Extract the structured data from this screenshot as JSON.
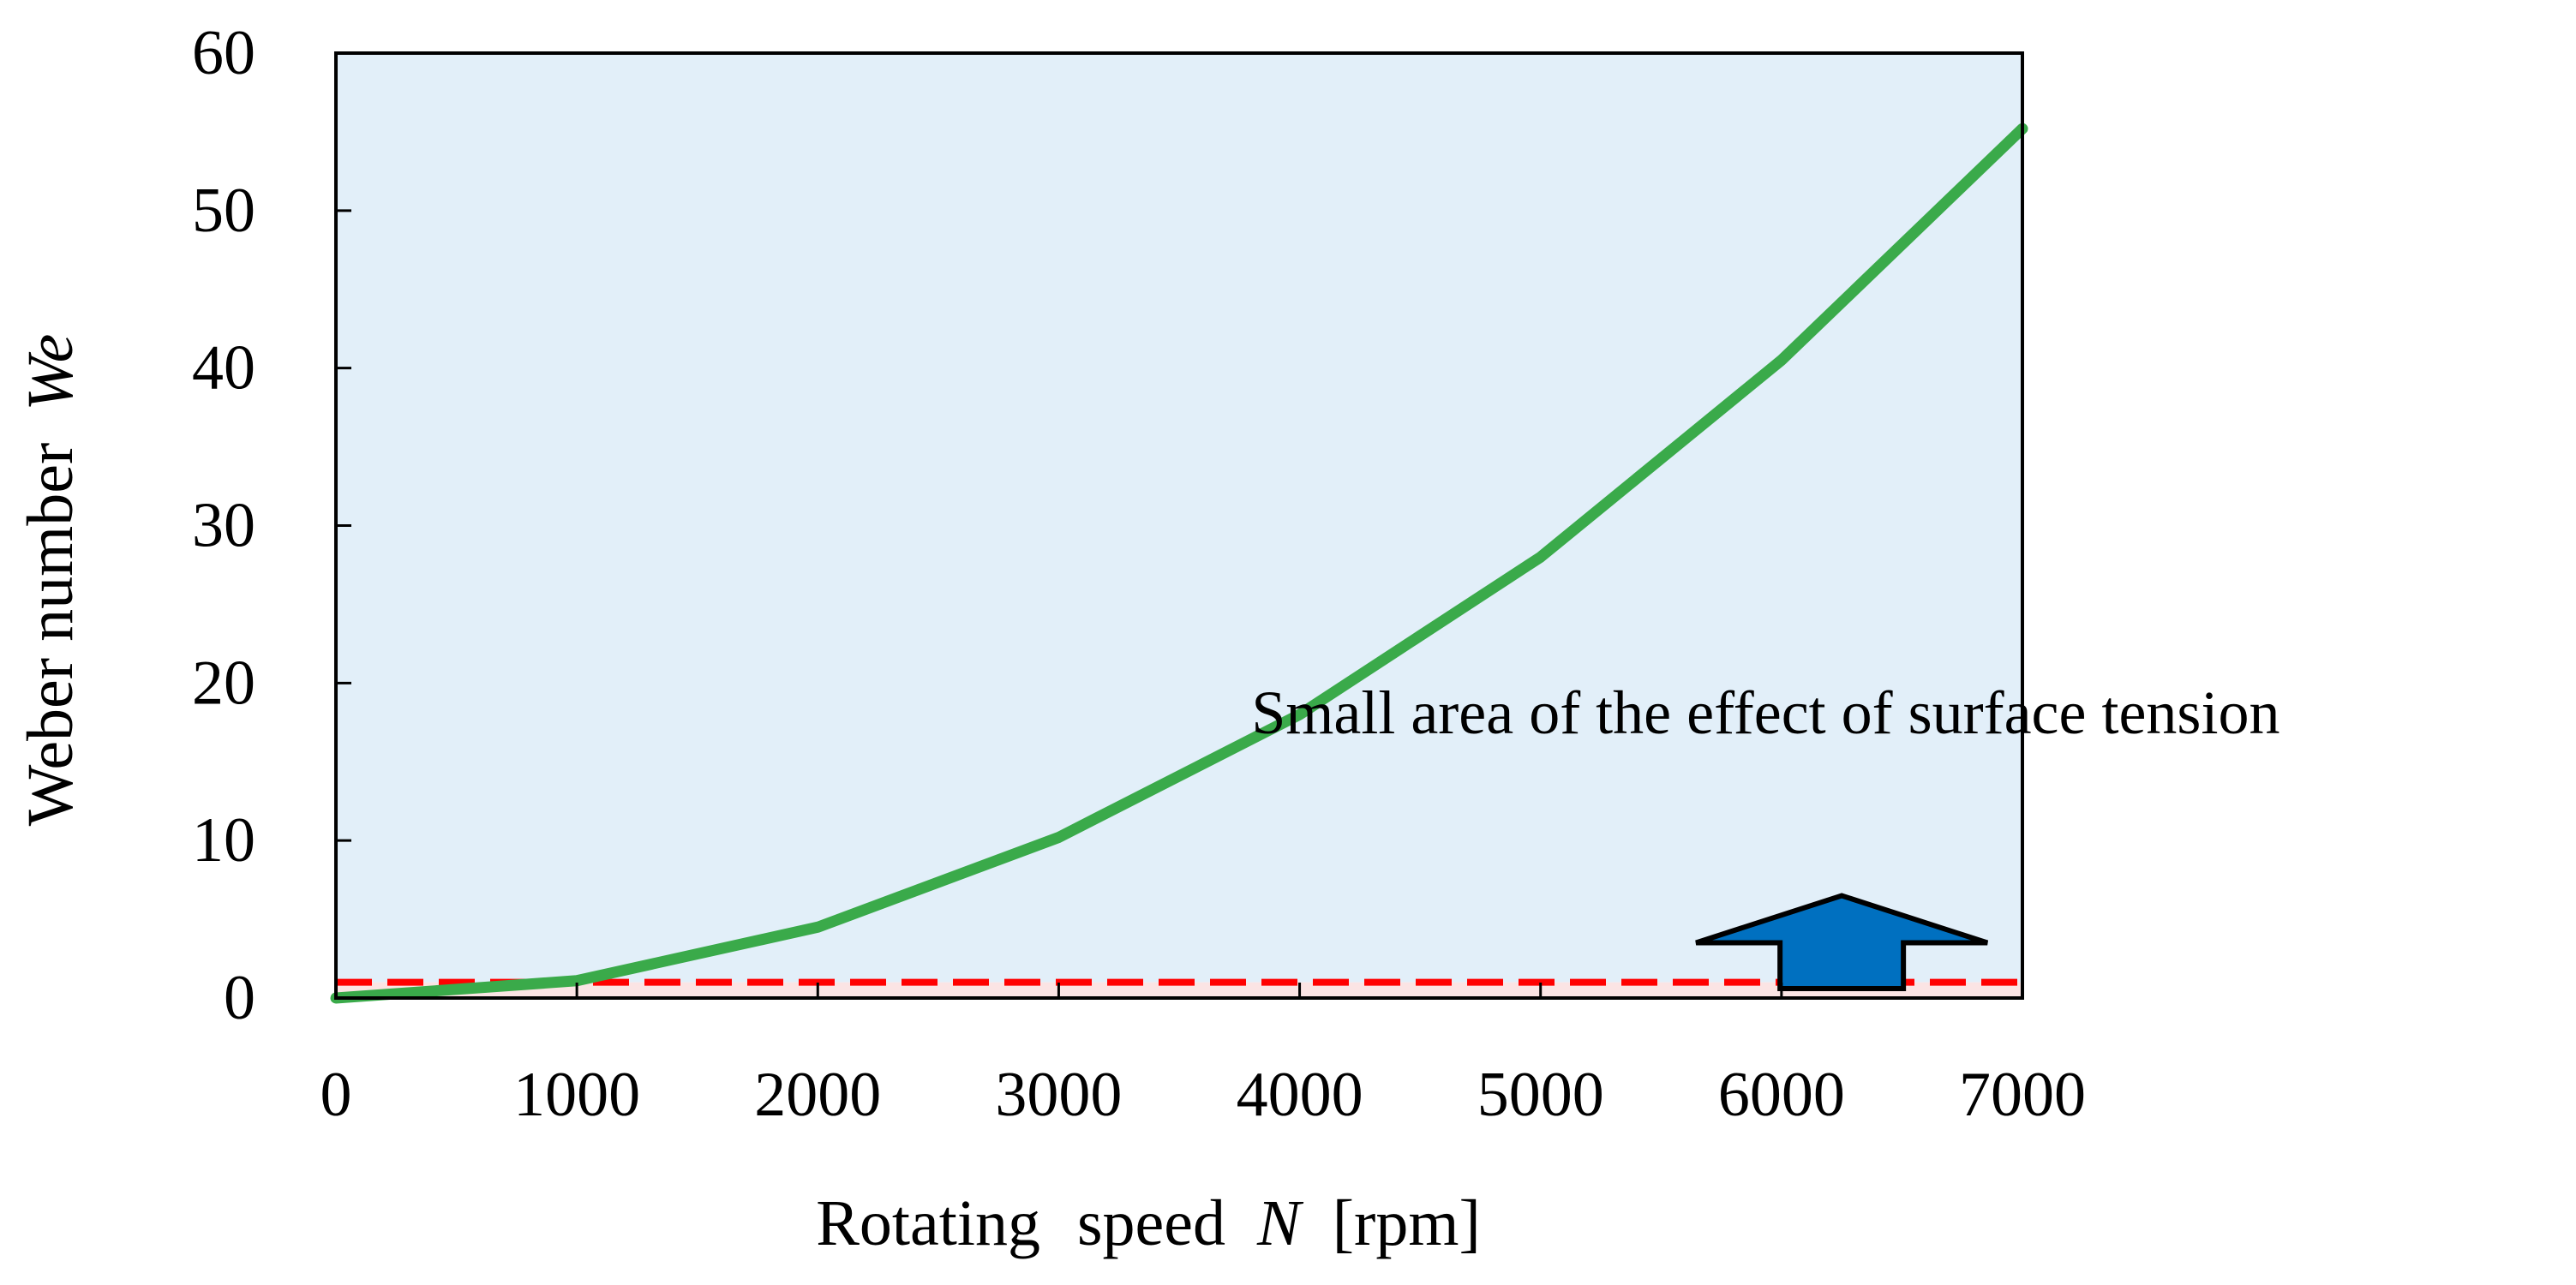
{
  "chart_data": {
    "type": "line",
    "title": "",
    "xlabel": {
      "prefix": "Rotating",
      "word": "speed",
      "symbol": "N",
      "unit": "[rpm]"
    },
    "ylabel": {
      "text": "Weber number",
      "symbol": "We"
    },
    "xlim": [
      0,
      7000
    ],
    "ylim": [
      0,
      60
    ],
    "xticks": [
      "0",
      "1000",
      "2000",
      "3000",
      "4000",
      "5000",
      "6000",
      "7000"
    ],
    "yticks": [
      "0",
      "10",
      "20",
      "30",
      "40",
      "50",
      "60"
    ],
    "grid": false,
    "series": [
      {
        "color": "#3aaa4a",
        "x": [
          0,
          1000,
          2000,
          3000,
          4000,
          5000,
          6000,
          7000
        ],
        "y": [
          0,
          1.1,
          4.5,
          10.2,
          18.0,
          28.0,
          40.5,
          55.2
        ]
      }
    ],
    "threshold": {
      "y": 1.0,
      "color": "#ff0000",
      "style": "dashed"
    },
    "regions": {
      "above_threshold_color": "#e2eff9",
      "below_threshold_color": "#fbe4e4"
    },
    "annotations": [
      {
        "text": "Small area of the effect of surface tension",
        "x": 3800,
        "y": 16.8
      }
    ],
    "arrow": {
      "direction": "up",
      "color": "#0070c0",
      "x": 6250,
      "from_y": 0.6,
      "to_y": 6.5
    }
  }
}
